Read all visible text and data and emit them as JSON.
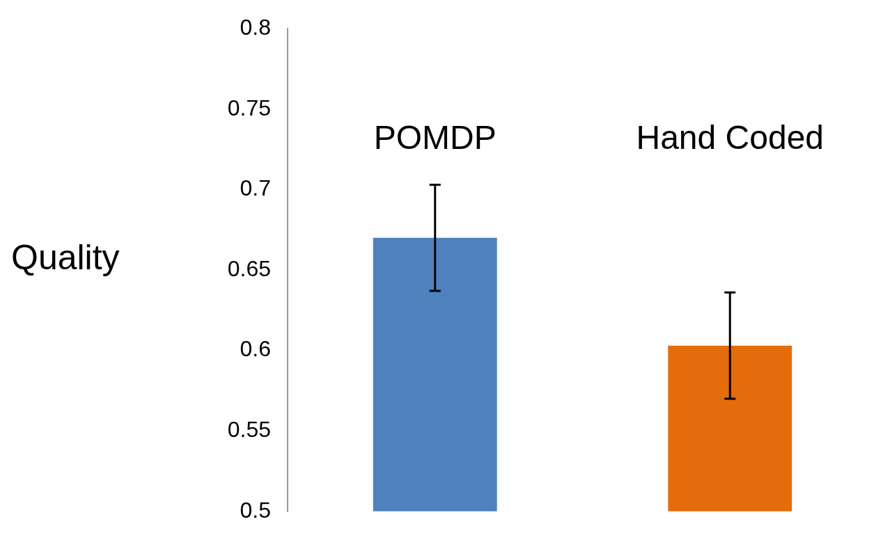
{
  "chart_data": {
    "type": "bar",
    "ylabel": "Quality",
    "categories": [
      "POMDP",
      "Hand Coded"
    ],
    "values": [
      0.67,
      0.603
    ],
    "colors": [
      "#4f81bd",
      "#e46c0a"
    ],
    "errors": [
      0.033,
      0.033
    ],
    "ylim": [
      0.5,
      0.8
    ],
    "yticks": [
      0.5,
      0.55,
      0.6,
      0.65,
      0.7,
      0.75,
      0.8
    ],
    "grid": false,
    "legend": false
  }
}
